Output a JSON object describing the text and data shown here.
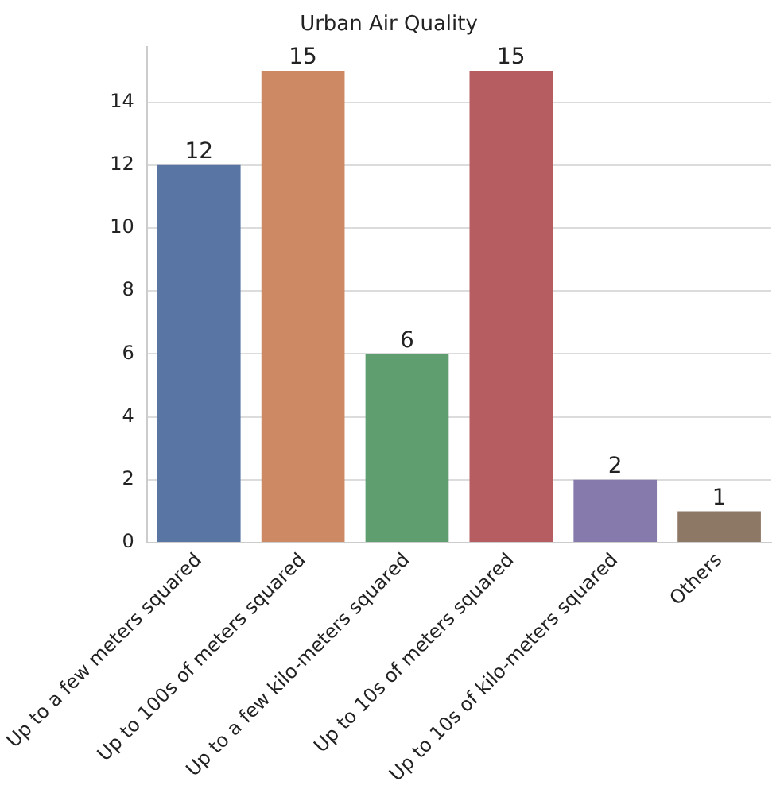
{
  "chart_data": {
    "type": "bar",
    "title": "Urban Air Quality",
    "categories": [
      "Up to a few meters squared",
      "Up to 100s of meters squared",
      "Up to a few kilo-meters squared",
      "Up to 10s of meters squared",
      "Up to 10s of kilo-meters squared",
      "Others"
    ],
    "values": [
      12,
      15,
      6,
      15,
      2,
      1
    ],
    "colors": [
      "#5975a4",
      "#cc8963",
      "#5f9e6e",
      "#b55d60",
      "#857aab",
      "#8d7866"
    ],
    "ylim": [
      0,
      15.75
    ],
    "yticks": [
      0,
      2,
      4,
      6,
      8,
      10,
      12,
      14
    ],
    "grid": "y",
    "data_labels": true,
    "legend": false
  }
}
